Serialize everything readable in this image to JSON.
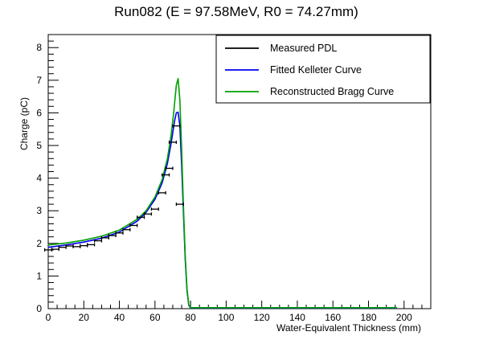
{
  "chart_data": {
    "type": "line",
    "title": "Run082 (E = 97.58MeV, R0 = 74.27mm)",
    "xlabel": "Water-Equivalent Thickness (mm)",
    "ylabel": "Charge (pC)",
    "xlim": [
      0,
      215
    ],
    "ylim": [
      0,
      8.4
    ],
    "xticks": [
      0,
      20,
      40,
      60,
      80,
      100,
      120,
      140,
      160,
      180,
      200
    ],
    "yticks": [
      0,
      1,
      2,
      3,
      4,
      5,
      6,
      7,
      8
    ],
    "grid": false,
    "legend_position": "top-right",
    "series": [
      {
        "name": "Measured PDL",
        "kind": "points",
        "color": "#000000",
        "x_error": 2,
        "x": [
          0,
          4,
          8,
          12,
          16,
          20,
          24,
          28,
          32,
          36,
          40,
          44,
          48,
          52,
          56,
          60,
          64,
          66,
          68,
          70,
          72,
          74
        ],
        "y": [
          1.8,
          1.82,
          1.88,
          1.92,
          1.9,
          1.93,
          1.96,
          2.08,
          2.17,
          2.24,
          2.32,
          2.42,
          2.55,
          2.8,
          2.9,
          3.05,
          3.55,
          4.1,
          4.3,
          5.1,
          5.6,
          3.2
        ]
      },
      {
        "name": "Fitted Kelleter Curve",
        "kind": "line",
        "color": "#0000ee",
        "x": [
          0,
          10,
          20,
          30,
          40,
          50,
          55,
          60,
          64,
          67,
          69,
          71,
          72,
          73,
          74,
          75,
          76,
          77,
          78,
          79,
          80,
          90,
          120,
          160,
          196
        ],
        "y": [
          1.88,
          1.95,
          2.04,
          2.16,
          2.35,
          2.68,
          2.95,
          3.35,
          3.85,
          4.45,
          5.05,
          5.75,
          6.0,
          6.02,
          5.6,
          4.4,
          2.9,
          1.5,
          0.55,
          0.1,
          0.02,
          0.02,
          0.02,
          0.02,
          0.02
        ]
      },
      {
        "name": "Reconstructed Bragg Curve",
        "kind": "line",
        "color": "#00a000",
        "x": [
          0,
          10,
          20,
          30,
          40,
          50,
          55,
          60,
          64,
          67,
          69,
          70.5,
          72,
          73,
          74,
          75,
          76,
          77,
          78,
          79,
          80,
          90,
          120,
          160,
          196
        ],
        "y": [
          1.95,
          2.01,
          2.1,
          2.22,
          2.41,
          2.74,
          3.0,
          3.42,
          3.95,
          4.6,
          5.3,
          6.0,
          6.85,
          7.05,
          6.4,
          4.9,
          3.1,
          1.6,
          0.6,
          0.12,
          0.03,
          0.03,
          0.03,
          0.03,
          0.03
        ]
      }
    ]
  }
}
